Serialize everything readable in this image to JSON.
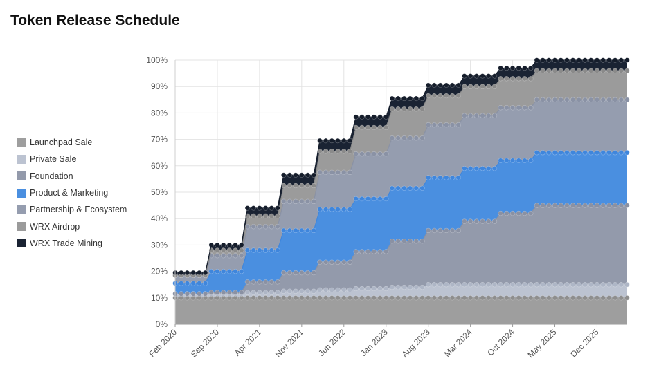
{
  "title": "Token Release Schedule",
  "chart_data": {
    "type": "area",
    "stacked": true,
    "cumulative_percent": true,
    "ylim": [
      0,
      100
    ],
    "y_ticks": [
      "0%",
      "10%",
      "20%",
      "30%",
      "40%",
      "50%",
      "60%",
      "70%",
      "80%",
      "90%",
      "100%"
    ],
    "x_start": "2020-02",
    "x_end": "2026-05",
    "x_ticks": [
      "Feb 2020",
      "Sep 2020",
      "Apr 2021",
      "Nov 2021",
      "Jun 2022",
      "Jan 2023",
      "Aug 2023",
      "Mar 2024",
      "Oct 2024",
      "May 2025",
      "Dec 2025"
    ],
    "grid": true,
    "legend_position": "left",
    "series": [
      {
        "name": "Launchpad Sale",
        "color": "#9e9e9e",
        "marker": "#8e8e8e",
        "steps": [
          [
            "2020-02",
            10
          ]
        ]
      },
      {
        "name": "Private Sale",
        "color": "#bcc3d1",
        "marker": "#aeb6c6",
        "steps": [
          [
            "2020-02",
            1.5
          ],
          [
            "2021-02",
            2
          ],
          [
            "2021-08",
            2.5
          ],
          [
            "2022-02",
            3
          ],
          [
            "2022-08",
            3.5
          ],
          [
            "2023-02",
            4
          ],
          [
            "2023-08",
            5
          ]
        ]
      },
      {
        "name": "Foundation",
        "color": "#939aab",
        "marker": "#8a91a3",
        "steps": [
          [
            "2020-02",
            0
          ],
          [
            "2020-08",
            0.5
          ],
          [
            "2021-02",
            4
          ],
          [
            "2021-08",
            7
          ],
          [
            "2022-02",
            10.5
          ],
          [
            "2022-08",
            14
          ],
          [
            "2023-02",
            17.5
          ],
          [
            "2023-08",
            20.5
          ],
          [
            "2024-02",
            24
          ],
          [
            "2024-08",
            27
          ],
          [
            "2025-02",
            30
          ]
        ]
      },
      {
        "name": "Product & Marketing",
        "color": "#4a8fe0",
        "marker": "#3f86dc",
        "steps": [
          [
            "2020-02",
            4
          ],
          [
            "2020-08",
            8
          ],
          [
            "2021-02",
            12
          ],
          [
            "2021-08",
            16
          ],
          [
            "2022-02",
            20
          ],
          [
            "2022-08",
            20
          ],
          [
            "2023-02",
            20
          ],
          [
            "2023-08",
            20
          ],
          [
            "2024-02",
            20
          ],
          [
            "2024-08",
            20
          ],
          [
            "2025-02",
            20
          ]
        ]
      },
      {
        "name": "Partnership & Ecosystem",
        "color": "#959daf",
        "marker": "#8a92a5",
        "steps": [
          [
            "2020-02",
            3
          ],
          [
            "2020-08",
            6
          ],
          [
            "2021-02",
            9
          ],
          [
            "2021-08",
            11
          ],
          [
            "2022-02",
            14
          ],
          [
            "2022-08",
            17
          ],
          [
            "2023-02",
            19
          ],
          [
            "2023-08",
            20
          ],
          [
            "2024-02",
            20
          ],
          [
            "2024-08",
            20
          ],
          [
            "2025-02",
            20
          ]
        ]
      },
      {
        "name": "WRX Airdrop",
        "color": "#9b9b9b",
        "marker": "#8a8a8a",
        "steps": [
          [
            "2020-02",
            0
          ],
          [
            "2020-08",
            2
          ],
          [
            "2021-02",
            4
          ],
          [
            "2021-08",
            6
          ],
          [
            "2022-02",
            8
          ],
          [
            "2022-08",
            10
          ],
          [
            "2023-02",
            11
          ],
          [
            "2023-08",
            11
          ],
          [
            "2024-02",
            11
          ],
          [
            "2024-08",
            11
          ],
          [
            "2025-02",
            11
          ]
        ]
      },
      {
        "name": "WRX Trade Mining",
        "color": "#1a2333",
        "marker": "#151d2b",
        "steps": [
          [
            "2020-02",
            1
          ],
          [
            "2020-08",
            2
          ],
          [
            "2021-02",
            3
          ],
          [
            "2021-08",
            4
          ],
          [
            "2022-02",
            4
          ],
          [
            "2022-08",
            4
          ],
          [
            "2023-02",
            4
          ],
          [
            "2023-08",
            4
          ],
          [
            "2024-02",
            4
          ],
          [
            "2024-08",
            4
          ],
          [
            "2025-02",
            4
          ]
        ]
      }
    ]
  }
}
